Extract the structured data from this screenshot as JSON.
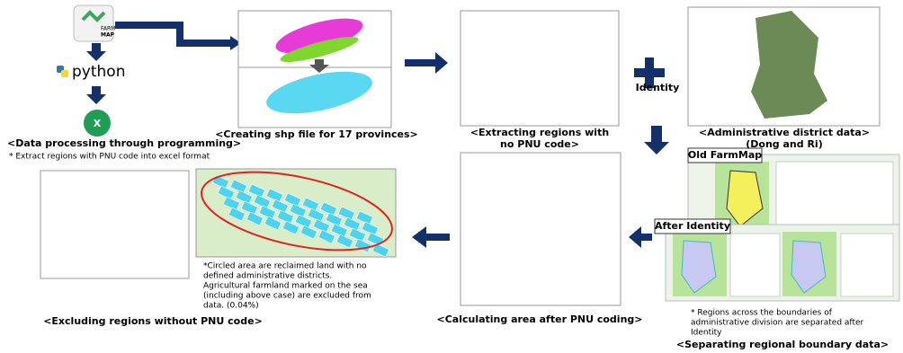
{
  "logo": {
    "lines": [
      "FARM",
      "MAP"
    ]
  },
  "python": "python",
  "processing": {
    "title": "<Data processing through programming>",
    "note": "* Extract regions with PNU code into excel format"
  },
  "shp": {
    "title": "<Creating shp file for 17 provinces>"
  },
  "extract": {
    "lines": [
      "<Extracting regions with",
      "no PNU code>"
    ]
  },
  "identity": "Identity",
  "admin": {
    "lines": [
      "<Administrative district data>",
      "(Dong and Ri)"
    ]
  },
  "old_farmmap": "Old FarmMap",
  "after_identity": "After Identity",
  "separating": {
    "note": [
      "* Regions across the boundaries of",
      "administrative division are separated after",
      "Identity"
    ],
    "title": "<Separating regional boundary data>"
  },
  "calculating": {
    "title": "<Calculating area after PNU coding>"
  },
  "excluding": {
    "note": [
      "*Circled area are reclaimed land with no",
      "defined administrative  districts.",
      "Agricultural farmland marked on the sea",
      "(including above case) are excluded from",
      "data. (0.04%)"
    ],
    "title": "<Excluding regions without PNU code>"
  }
}
